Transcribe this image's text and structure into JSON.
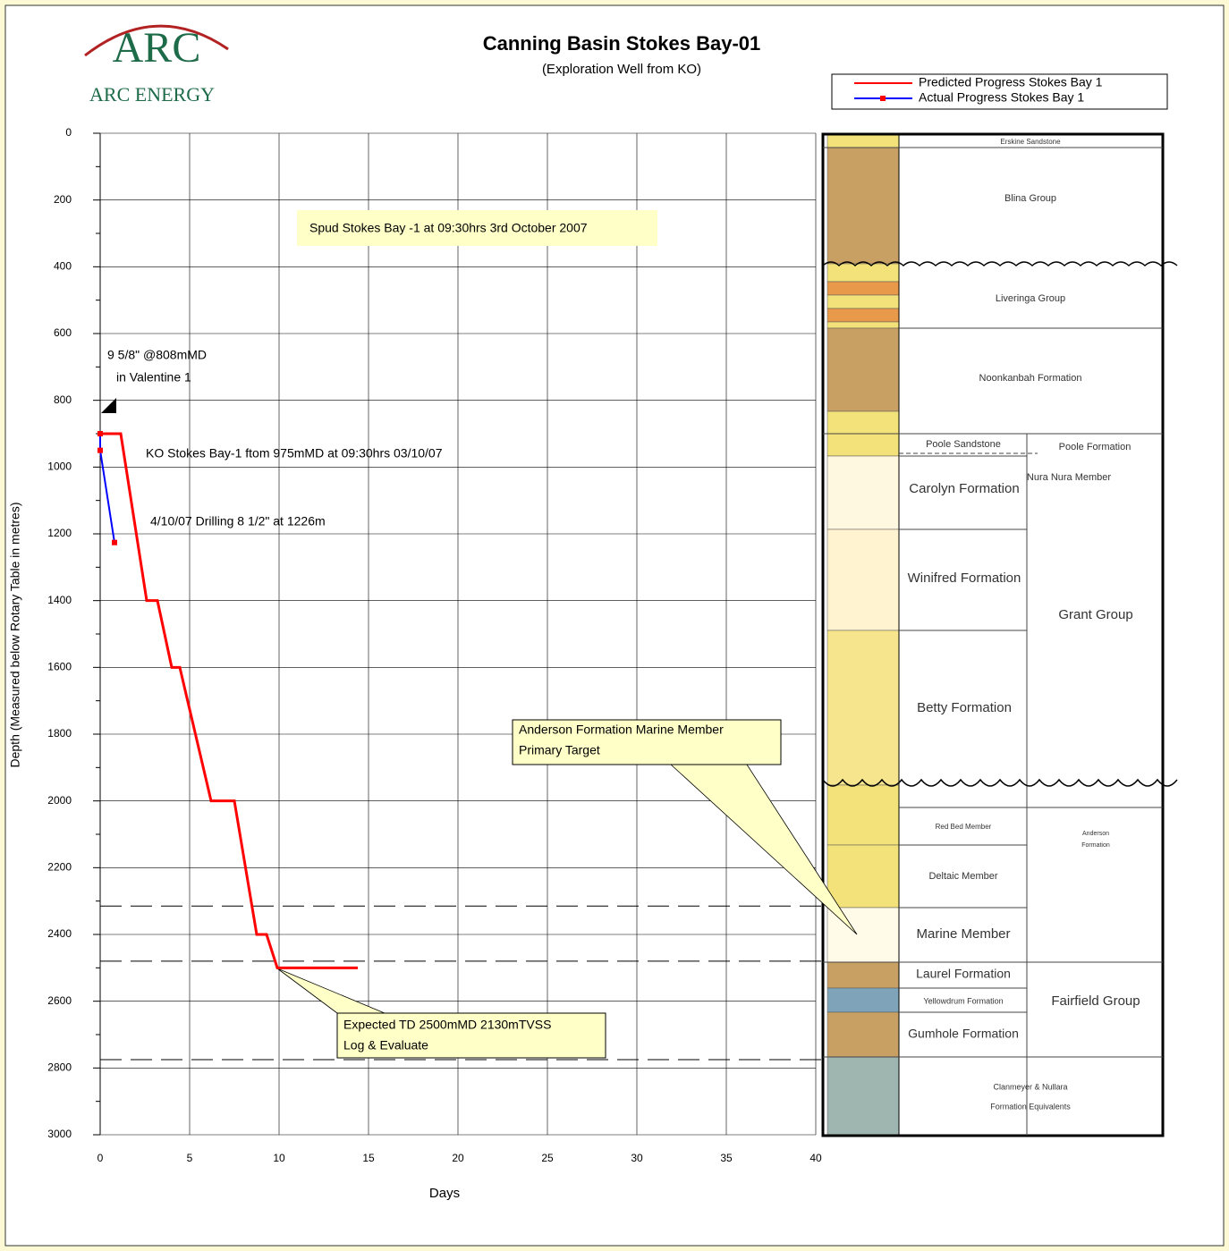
{
  "logo": {
    "mark": "ARC",
    "name": "ARC ENERGY"
  },
  "chart_data": {
    "type": "line",
    "title": "Canning Basin Stokes Bay-01",
    "subtitle": "(Exploration Well from KO)",
    "x_label": "Days",
    "y_label": "Depth (Measured below Rotary Table in metres)",
    "xlim": [
      0,
      40
    ],
    "xticks": [
      0,
      5,
      10,
      15,
      20,
      25,
      30,
      35,
      40
    ],
    "ylim": [
      0,
      3000
    ],
    "y_reversed": true,
    "yticks": [
      0,
      200,
      400,
      600,
      800,
      1000,
      1200,
      1400,
      1600,
      1800,
      2000,
      2200,
      2400,
      2600,
      2800,
      3000
    ],
    "minor_yticks": [
      100,
      300,
      500,
      700,
      900,
      1100,
      1300,
      1500,
      1700,
      1900,
      2100,
      2300,
      2500,
      2700,
      2900
    ],
    "grid": true,
    "series": [
      {
        "name": "Predicted Progress Stokes Bay 1",
        "color": "#ff0000",
        "x": [
          0,
          1.15,
          2.6,
          3.2,
          4.0,
          4.45,
          6.2,
          7.5,
          8.75,
          9.3,
          9.9,
          14.4
        ],
        "values": [
          900,
          900,
          1400,
          1400,
          1600,
          1600,
          2000,
          2000,
          2400,
          2400,
          2500,
          2500
        ]
      },
      {
        "name": "Actual Progress Stokes Bay 1",
        "color": "#0000ff",
        "marker_color": "#ff0000",
        "x": [
          0,
          0,
          0.8
        ],
        "values": [
          900,
          950,
          1226
        ]
      }
    ],
    "reference_lines": [
      2315,
      2480,
      2775
    ],
    "annotations": [
      {
        "lines": [
          "Spud Stokes Bay -1 at 09:30hrs 3rd October 2007"
        ]
      },
      {
        "lines": [
          "9 5/8\" @808mMD",
          "in Valentine 1"
        ]
      },
      {
        "lines": [
          "KO Stokes Bay-1 ftom 975mMD at 09:30hrs 03/10/07"
        ]
      },
      {
        "lines": [
          "4/10/07 Drilling 8 1/2\" at 1226m"
        ]
      },
      {
        "lines": [
          "Anderson Formation Marine Member",
          "Primary Target"
        ]
      },
      {
        "lines": [
          "Expected TD 2500mMD 2130mTVSS",
          "Log & Evaluate"
        ]
      }
    ]
  },
  "stratigraphy": {
    "units": [
      "Erskine Sandstone",
      "Blina Group",
      "Liveringa Group",
      "Noonkanbah Formation",
      "Poole Sandstone",
      "Poole Formation",
      "Nura Nura Member",
      "Carolyn Formation",
      "Winifred Formation",
      "Grant Group",
      "Betty Formation",
      "Red Bed Member",
      "Anderson",
      "Formation",
      "Deltaic Member",
      "Marine Member",
      "Laurel Formation",
      "Yellowdrum Formation",
      "Fairfield Group",
      "Gumhole Formation",
      "Clanmeyer & Nullara",
      "Formation Equivalents"
    ]
  }
}
